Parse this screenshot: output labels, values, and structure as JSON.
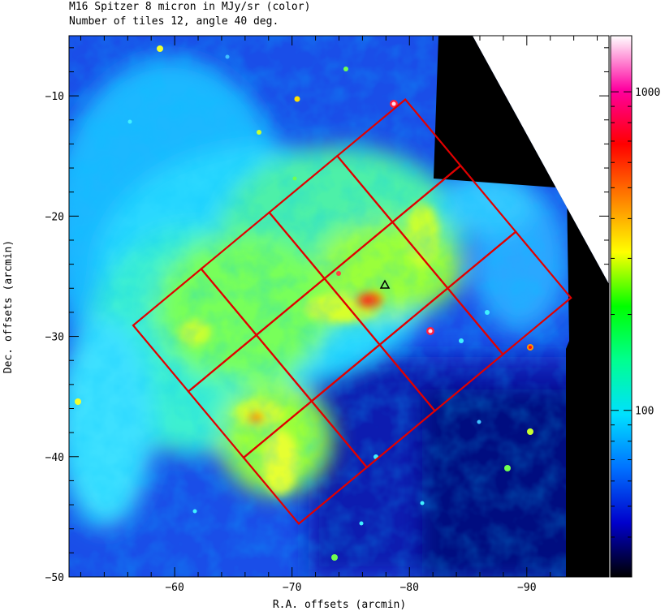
{
  "title": {
    "line1": "M16 Spitzer 8 micron in MJy/sr (color)",
    "line2": "Number of tiles 12, angle 40 deg."
  },
  "axes": {
    "xlabel": "R.A. offsets (arcmin)",
    "ylabel": "Dec. offsets (arcmin)",
    "x_ticks": [
      {
        "value": -60,
        "label": "−60"
      },
      {
        "value": -70,
        "label": "−70"
      },
      {
        "value": -80,
        "label": "−80"
      },
      {
        "value": -90,
        "label": "−90"
      }
    ],
    "y_ticks": [
      {
        "value": -10,
        "label": "−10"
      },
      {
        "value": -20,
        "label": "−20"
      },
      {
        "value": -30,
        "label": "−30"
      },
      {
        "value": -40,
        "label": "−40"
      },
      {
        "value": -50,
        "label": "−50"
      }
    ],
    "xlim": [
      -51,
      -97
    ],
    "ylim": [
      -50,
      -5
    ]
  },
  "colorbar": {
    "ticks": [
      {
        "value": 100,
        "label": "100"
      },
      {
        "value": 1000,
        "label": "1000"
      }
    ],
    "scale": "log",
    "stops": [
      "#000000",
      "#0000cc",
      "#0070ff",
      "#00e0ff",
      "#00ff90",
      "#00ff00",
      "#ffff00",
      "#ff8000",
      "#ff0000",
      "#ff00a0",
      "#ffffff"
    ]
  },
  "overlay": {
    "tile_color": "#e00000",
    "tiles_count": 12,
    "angle_deg": 40,
    "marker": "triangle",
    "marker_position": [
      -77.3,
      -25.9
    ]
  },
  "colors": {
    "background": "#ffffff",
    "frame": "#000000"
  }
}
